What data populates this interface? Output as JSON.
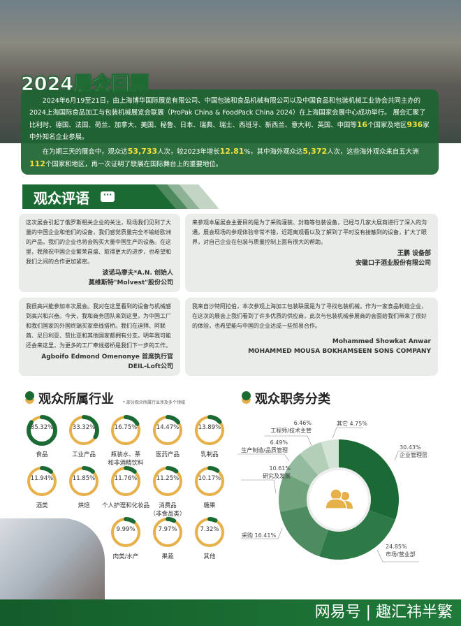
{
  "recap": {
    "title": "2024展会回顾",
    "p1_a": "2024年6月19至21日，由上海博华国际展览有限公司、中国包装和食品机械有限公司以及中国食品和包装机械工业协会共同主办的2024上海国际食品加工与包装机械展览会联展（ProPak China & FoodPack China 2024）在上海国家会展中心成功举行。 展会汇聚了比利时、德国、法国、荷兰、加拿大、美国、秘鲁、日本、瑞典、瑞士、西班牙、新西兰、意大利、英国、中国等",
    "countries": "16",
    "p1_b": "个国家及地区",
    "exhibitors": "936",
    "p1_c": "家中外知名企业参展。",
    "p2_a": "在为期三天的展会中，观众达",
    "visitors": "53,733",
    "p2_b": "人次，较2023年增长",
    "growth": "12.81",
    "p2_c": "%，其中海外观众达",
    "overseas": "5,372",
    "p2_d": "人次，这些海外观众来自五大洲",
    "regions": "112",
    "p2_e": "个国家和地区，再一次证明了联展在国际舞台上的重要地位。"
  },
  "testimonials": {
    "title": "观众评语",
    "chat_icon": "speech-bubble-icon",
    "items": [
      {
        "text": "这次展会引起了俄罗斯相关企业的关注，现场我们见到了大量的中国企业和他们的设备，我们感觉质量完全不输给欧洲的产品，我们的企业也将会购买大量中国生产的设备。在这里，我预祝中国企业繁荣昌盛、取得更大的进步，也希望和我们之间的合作更加紧密。",
        "name": "波诺马廖夫*A.N. 创始人",
        "company": "莫维斯特\"Molvest\"股份公司"
      },
      {
        "text": "来参观本届展会主要目的是为了采购灌装、封箱等包装设备，已经与几家大展商进行了深入的沟通。展会现场的参观体验非常不错，近距离观看以及了解到了平时没有接触到的设备，扩大了眼界，对自己企业在包装与质量控制上面有很大的帮助。",
        "name": "王鹏 设备部",
        "company": "安徽口子酒业股份有限公司"
      },
      {
        "text": "我很高兴能参加本次展会。我对在这里看到的设备与机械感到高兴和兴奋。今天，我和商务团队来到这里，为中国工厂和我们国家的外国终端买家牵线搭桥。我们在迪拜、阿联酋、尼日利亚、赞比亚和其他国家都拥有分支。明年我可能还会来这里，为更多的工厂牵线搭桥是我们下一步的工作。",
        "name": "Agboifo Edmond Omenonye 首席执行官",
        "company": "DEIL-Loft公司"
      },
      {
        "text": "我来自沙特阿拉伯，本次参观上海加工包装联展是为了寻找包装机械，作为一家食品制造企业，在这次的展会上我们看到了许多优质的供应商，此次与包装机械参展商的会面给我们带来了很好的体验，也希望能与中国的企业达成一些贸易合作。",
        "name": "Mohammed Showkat Anwar",
        "company": "MOHAMMED MOUSA BOKHAMSEEN SONS COMPANY"
      }
    ]
  },
  "colors": {
    "green": "#1c6a33",
    "gold": "#e6b04b"
  },
  "chart_data": [
    {
      "type": "donut-grid",
      "title": "观众所属行业",
      "note": "* 部分观众所属行业涉及多个领域",
      "categories": [
        "食品",
        "工业产品",
        "瓶装水、茶和非酒精饮料",
        "医药产品",
        "乳制品",
        "酒类",
        "烘焙",
        "个人护理和化妆品",
        "消费品（非食品类）",
        "糖果",
        "肉类/水产",
        "果蔬",
        "其他"
      ],
      "labels": [
        [
          "食品"
        ],
        [
          "工业产品"
        ],
        [
          "瓶装水、茶",
          "和非酒精饮料"
        ],
        [
          "医药产品"
        ],
        [
          "乳制品"
        ],
        [
          "酒类"
        ],
        [
          "烘焙"
        ],
        [
          "个人护理和化妆品"
        ],
        [
          "消费品",
          "（非食品类）"
        ],
        [
          "糖果"
        ],
        [
          "肉类/水产"
        ],
        [
          "果蔬"
        ],
        [
          "其他"
        ]
      ],
      "values": [
        85.32,
        33.32,
        16.75,
        14.47,
        13.89,
        11.94,
        11.85,
        11.76,
        11.25,
        10.17,
        9.99,
        7.97,
        7.32
      ],
      "value_labels": [
        "85.32%",
        "33.32%",
        "16.75%",
        "14.47%",
        "13.89%",
        "11.94%",
        "11.85%",
        "11.76%",
        "11.25%",
        "10.17%",
        "9.99%",
        "7.97%",
        "7.32%"
      ]
    },
    {
      "type": "donut",
      "title": "观众职务分类",
      "center_icon": "people-icon",
      "categories": [
        "企业管理层",
        "市场/营业部",
        "采购",
        "研究及发展",
        "生产制造/品质管理",
        "工程师/技术主管",
        "其它"
      ],
      "values": [
        30.43,
        24.85,
        16.41,
        10.61,
        6.49,
        6.46,
        4.75
      ],
      "value_labels": [
        "30.43%",
        "24.85%",
        "采购 16.41%",
        "10.61%",
        "6.49%",
        "6.46%",
        "其它 4.75%"
      ],
      "colors": [
        "#1b6a36",
        "#2e7a47",
        "#4d8c60",
        "#6fa37c",
        "#94bb9d",
        "#b3cfb8",
        "#d3e3d5"
      ]
    }
  ],
  "footer": {
    "watermark": "网易号 | 趣汇祎半繁"
  }
}
